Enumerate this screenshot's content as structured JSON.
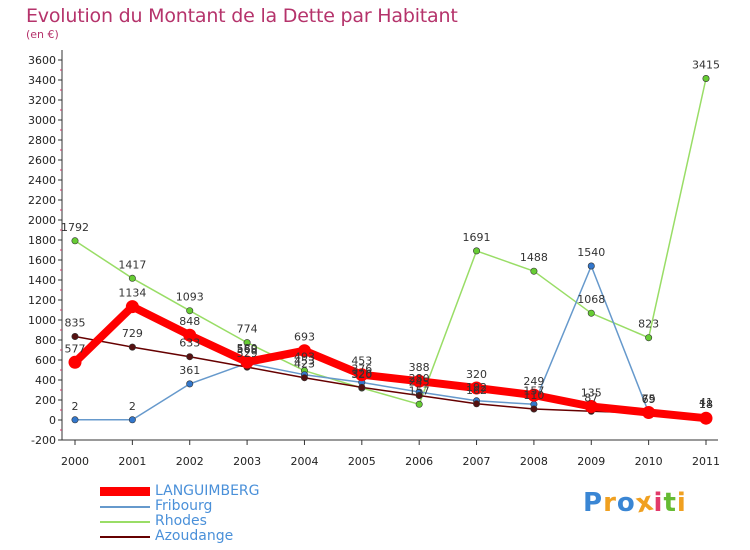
{
  "header": {
    "title": "Evolution du Montant de la Dette par Habitant",
    "subtitle": "(en €)"
  },
  "colors": {
    "title": "#b5336b",
    "legend_text": "#4a90d9",
    "axis": "#333333",
    "grid_tick": "#cc3366"
  },
  "chart_data": {
    "type": "line",
    "x": [
      "2000",
      "2001",
      "2002",
      "2003",
      "2004",
      "2005",
      "2006",
      "2007",
      "2008",
      "2009",
      "2010",
      "2011"
    ],
    "ylim": [
      -200,
      3600
    ],
    "yticks": [
      -200,
      0,
      200,
      400,
      600,
      800,
      1000,
      1200,
      1400,
      1600,
      1800,
      2000,
      2200,
      2400,
      2600,
      2800,
      3000,
      3200,
      3400,
      3600
    ],
    "grid": false,
    "legend_position": "bottom-left",
    "series": [
      {
        "name": "LANGUIMBERG",
        "color": "#ff0000",
        "marker_color": "#ff0000",
        "thick": true,
        "values": [
          577,
          1134,
          848,
          580,
          693,
          453,
          388,
          320,
          249,
          135,
          75,
          18
        ]
      },
      {
        "name": "Fribourg",
        "color": "#6699cc",
        "marker_color": "#3377cc",
        "thick": false,
        "values": [
          2,
          2,
          361,
          568,
          453,
          376,
          280,
          192,
          157,
          1540,
          75,
          18
        ]
      },
      {
        "name": "Rhodes",
        "color": "#99dd66",
        "marker_color": "#66cc33",
        "thick": false,
        "values": [
          1792,
          1417,
          1093,
          774,
          493,
          320,
          157,
          1691,
          1488,
          1068,
          823,
          3415
        ]
      },
      {
        "name": "Azoudange",
        "color": "#660000",
        "marker_color": "#551111",
        "thick": false,
        "values": [
          835,
          729,
          633,
          529,
          423,
          326,
          245,
          162,
          110,
          87,
          69,
          41
        ]
      }
    ],
    "data_labels": [
      [
        "577",
        "1134",
        "848",
        "580",
        "693",
        "453",
        "388",
        "320",
        "249",
        "135",
        "75",
        "18"
      ],
      [
        "2",
        "2",
        "361",
        "568",
        "453",
        "376",
        "280",
        "192",
        "157",
        "1540",
        "75",
        "18"
      ],
      [
        "1792",
        "1417",
        "1093",
        "774",
        "493",
        "320",
        "157",
        "1691",
        "1488",
        "1068",
        "823",
        "3415"
      ],
      [
        "835",
        "729",
        "633",
        "529",
        "423",
        "326",
        "245",
        "162",
        "110",
        "87",
        "69",
        "41"
      ]
    ]
  },
  "brand": {
    "text": "Proxiti",
    "letters": [
      "P",
      "r",
      "o",
      "x",
      "i",
      "t",
      "i"
    ],
    "letter_colors": [
      "#3a86d4",
      "#f0a020",
      "#3a86d4",
      "#f0a020",
      "#e23a6a",
      "#66bb33",
      "#f0a020"
    ]
  }
}
